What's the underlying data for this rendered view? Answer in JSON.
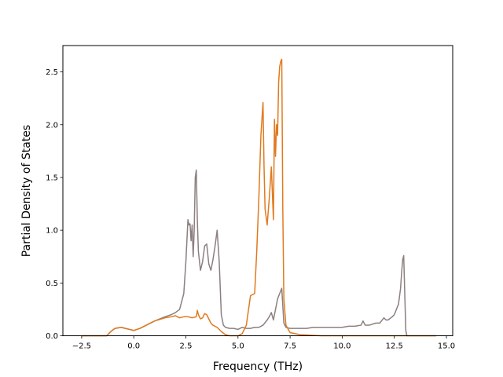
{
  "chart_data": {
    "type": "line",
    "title": "",
    "xlabel": "Frequency (THz)",
    "ylabel": "Partial Density of States",
    "xlim": [
      -3.4,
      15.3
    ],
    "ylim": [
      0,
      2.75
    ],
    "xticks": [
      -2.5,
      0.0,
      2.5,
      5.0,
      7.5,
      10.0,
      12.5,
      15.0
    ],
    "xtick_labels": [
      "−2.5",
      "0.0",
      "2.5",
      "5.0",
      "7.5",
      "10.0",
      "12.5",
      "15.0"
    ],
    "yticks": [
      0.0,
      0.5,
      1.0,
      1.5,
      2.0,
      2.5
    ],
    "ytick_labels": [
      "0.0",
      "0.5",
      "1.0",
      "1.5",
      "2.0",
      "2.5"
    ],
    "grid": false,
    "legend": "none",
    "series": [
      {
        "color": "#8c7f7f",
        "x": [
          -2.5,
          -1.3,
          -1.1,
          -0.9,
          -0.6,
          -0.4,
          -0.2,
          0.0,
          0.3,
          0.6,
          1.0,
          1.5,
          1.8,
          2.0,
          2.2,
          2.4,
          2.5,
          2.6,
          2.65,
          2.7,
          2.75,
          2.8,
          2.85,
          2.9,
          2.95,
          3.0,
          3.05,
          3.1,
          3.2,
          3.3,
          3.4,
          3.5,
          3.6,
          3.7,
          3.8,
          3.9,
          4.0,
          4.1,
          4.2,
          4.3,
          4.4,
          4.6,
          4.8,
          5.0,
          5.2,
          5.4,
          5.6,
          5.8,
          6.0,
          6.2,
          6.4,
          6.5,
          6.6,
          6.7,
          6.8,
          6.9,
          7.0,
          7.1,
          7.2,
          7.3,
          7.5,
          7.8,
          8.0,
          8.3,
          8.6,
          9.0,
          9.3,
          9.6,
          10.0,
          10.3,
          10.6,
          10.9,
          11.0,
          11.1,
          11.3,
          11.6,
          11.8,
          12.0,
          12.1,
          12.2,
          12.4,
          12.5,
          12.6,
          12.7,
          12.8,
          12.85,
          12.9,
          12.95,
          13.0,
          13.05,
          13.1,
          14.5
        ],
        "y": [
          0.0,
          0.0,
          0.04,
          0.07,
          0.08,
          0.07,
          0.06,
          0.05,
          0.07,
          0.1,
          0.14,
          0.18,
          0.2,
          0.22,
          0.25,
          0.4,
          0.7,
          1.1,
          1.05,
          1.06,
          0.9,
          1.05,
          0.75,
          1.0,
          1.5,
          1.57,
          1.1,
          0.8,
          0.62,
          0.7,
          0.85,
          0.87,
          0.68,
          0.62,
          0.72,
          0.85,
          1.0,
          0.7,
          0.2,
          0.1,
          0.08,
          0.07,
          0.07,
          0.06,
          0.08,
          0.07,
          0.07,
          0.08,
          0.08,
          0.1,
          0.15,
          0.18,
          0.22,
          0.15,
          0.25,
          0.35,
          0.4,
          0.45,
          0.12,
          0.08,
          0.07,
          0.07,
          0.07,
          0.07,
          0.08,
          0.08,
          0.08,
          0.08,
          0.08,
          0.09,
          0.09,
          0.1,
          0.14,
          0.1,
          0.1,
          0.12,
          0.12,
          0.17,
          0.15,
          0.15,
          0.18,
          0.2,
          0.25,
          0.3,
          0.45,
          0.6,
          0.72,
          0.76,
          0.4,
          0.05,
          0.0,
          0.0
        ]
      },
      {
        "color": "#e07a1f",
        "x": [
          -2.5,
          -1.3,
          -1.1,
          -0.9,
          -0.6,
          -0.4,
          -0.2,
          0.0,
          0.3,
          0.6,
          1.0,
          1.5,
          1.8,
          2.0,
          2.2,
          2.4,
          2.6,
          2.8,
          3.0,
          3.05,
          3.1,
          3.2,
          3.3,
          3.4,
          3.5,
          3.6,
          3.7,
          3.8,
          4.0,
          4.2,
          4.4,
          4.6,
          4.8,
          5.0,
          5.2,
          5.4,
          5.6,
          5.8,
          5.9,
          6.0,
          6.1,
          6.2,
          6.25,
          6.3,
          6.4,
          6.5,
          6.6,
          6.7,
          6.75,
          6.8,
          6.85,
          6.9,
          6.95,
          7.0,
          7.05,
          7.1,
          7.15,
          7.2,
          7.3,
          7.5,
          8.0,
          9.0,
          10.0,
          11.0,
          12.0,
          13.0,
          13.05,
          14.5
        ],
        "y": [
          0.0,
          0.0,
          0.04,
          0.07,
          0.08,
          0.07,
          0.06,
          0.05,
          0.07,
          0.1,
          0.14,
          0.17,
          0.18,
          0.19,
          0.17,
          0.18,
          0.18,
          0.17,
          0.18,
          0.24,
          0.2,
          0.16,
          0.17,
          0.21,
          0.2,
          0.16,
          0.12,
          0.1,
          0.08,
          0.04,
          0.01,
          0.0,
          0.0,
          0.0,
          0.02,
          0.1,
          0.38,
          0.4,
          0.8,
          1.3,
          1.9,
          2.21,
          1.6,
          1.2,
          1.05,
          1.3,
          1.6,
          1.1,
          2.05,
          1.7,
          2.0,
          1.9,
          2.4,
          2.55,
          2.6,
          2.62,
          1.2,
          0.35,
          0.1,
          0.03,
          0.01,
          0.0,
          0.0,
          0.0,
          0.0,
          0.0,
          0.0,
          0.0
        ]
      }
    ]
  }
}
